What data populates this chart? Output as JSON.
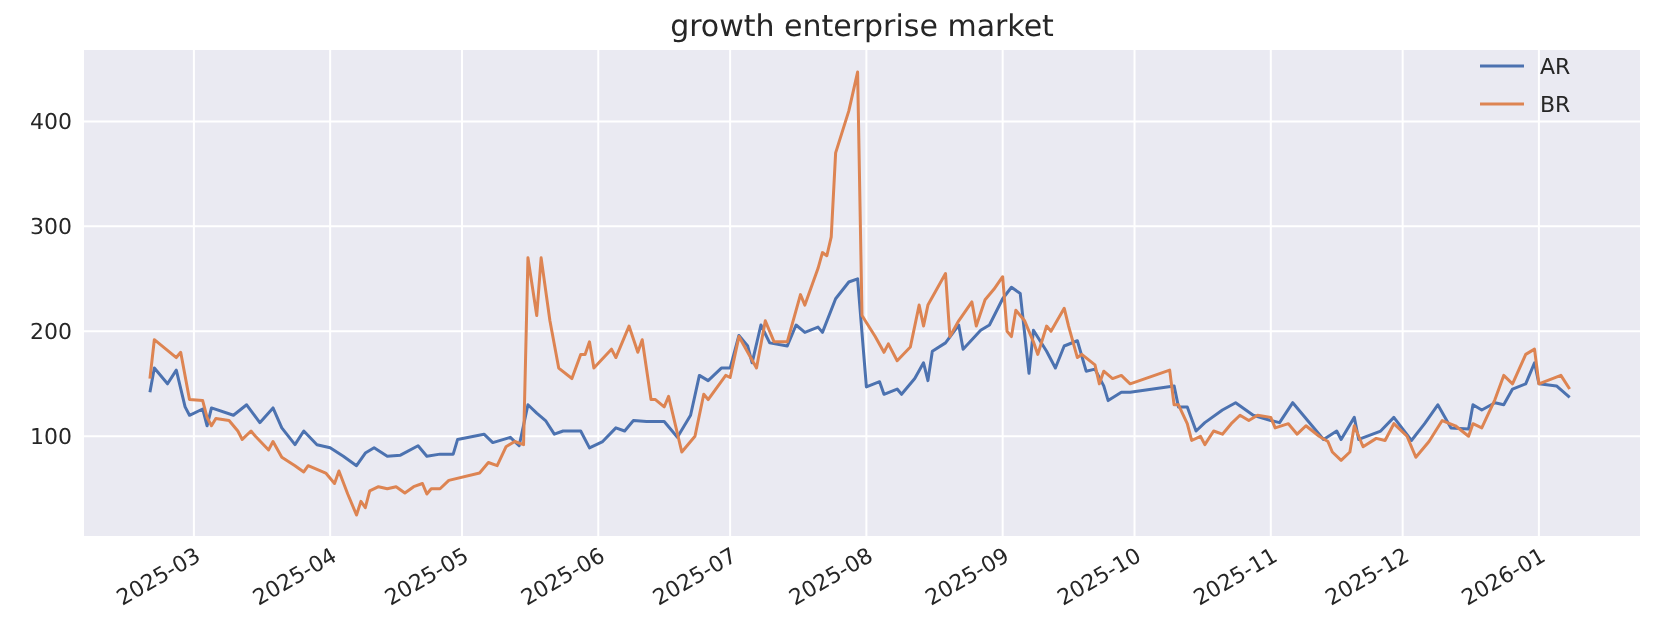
{
  "chart_data": {
    "type": "line",
    "title": "growth enterprise market",
    "xlim": [
      "2025-02-04",
      "2026-01-24"
    ],
    "xticks": [
      "2025-03",
      "2025-04",
      "2025-05",
      "2025-06",
      "2025-07",
      "2025-08",
      "2025-09",
      "2025-10",
      "2025-11",
      "2025-12",
      "2026-01"
    ],
    "ylim": [
      5,
      468
    ],
    "yticks": [
      100,
      200,
      300,
      400
    ],
    "grid": true,
    "legend": "top right",
    "line_style": "solid",
    "marker": "none",
    "series": [
      {
        "name": "AR",
        "color": "#4c72b0",
        "x": [
          "2025-02-19",
          "2025-02-20",
          "2025-02-23",
          "2025-02-25",
          "2025-02-27",
          "2025-02-28",
          "2025-03-03",
          "2025-03-04",
          "2025-03-05",
          "2025-03-10",
          "2025-03-13",
          "2025-03-16",
          "2025-03-19",
          "2025-03-21",
          "2025-03-24",
          "2025-03-26",
          "2025-03-29",
          "2025-04-01",
          "2025-04-04",
          "2025-04-07",
          "2025-04-09",
          "2025-04-11",
          "2025-04-14",
          "2025-04-17",
          "2025-04-21",
          "2025-04-23",
          "2025-04-26",
          "2025-04-29",
          "2025-04-30",
          "2025-05-06",
          "2025-05-08",
          "2025-05-12",
          "2025-05-14",
          "2025-05-16",
          "2025-05-18",
          "2025-05-20",
          "2025-05-22",
          "2025-05-24",
          "2025-05-28",
          "2025-05-30",
          "2025-06-02",
          "2025-06-05",
          "2025-06-07",
          "2025-06-09",
          "2025-06-12",
          "2025-06-16",
          "2025-06-19",
          "2025-06-22",
          "2025-06-24",
          "2025-06-26",
          "2025-06-29",
          "2025-07-01",
          "2025-07-03",
          "2025-07-05",
          "2025-07-06",
          "2025-07-08",
          "2025-07-10",
          "2025-07-14",
          "2025-07-16",
          "2025-07-18",
          "2025-07-21",
          "2025-07-22",
          "2025-07-25",
          "2025-07-28",
          "2025-07-30",
          "2025-08-01",
          "2025-08-04",
          "2025-08-05",
          "2025-08-08",
          "2025-08-09",
          "2025-08-12",
          "2025-08-14",
          "2025-08-15",
          "2025-08-16",
          "2025-08-19",
          "2025-08-22",
          "2025-08-23",
          "2025-08-27",
          "2025-08-29",
          "2025-09-01",
          "2025-09-03",
          "2025-09-05",
          "2025-09-07",
          "2025-09-08",
          "2025-09-11",
          "2025-09-13",
          "2025-09-15",
          "2025-09-18",
          "2025-09-20",
          "2025-09-22",
          "2025-09-24",
          "2025-09-25",
          "2025-09-28",
          "2025-09-30",
          "2025-10-10",
          "2025-10-11",
          "2025-10-13",
          "2025-10-15",
          "2025-10-17",
          "2025-10-21",
          "2025-10-24",
          "2025-10-28",
          "2025-11-01",
          "2025-11-03",
          "2025-11-06",
          "2025-11-10",
          "2025-11-13",
          "2025-11-16",
          "2025-11-17",
          "2025-11-20",
          "2025-11-21",
          "2025-11-26",
          "2025-11-29",
          "2025-12-03",
          "2025-12-06",
          "2025-12-09",
          "2025-12-12",
          "2025-12-16",
          "2025-12-17",
          "2025-12-19",
          "2025-12-22",
          "2025-12-24",
          "2025-12-26",
          "2025-12-29",
          "2025-12-31",
          "2026-01-01",
          "2026-01-05",
          "2026-01-08"
        ],
        "values": [
          142,
          165,
          150,
          163,
          128,
          120,
          126,
          110,
          127,
          120,
          130,
          113,
          127,
          108,
          92,
          105,
          92,
          89,
          81,
          72,
          84,
          89,
          81,
          82,
          91,
          81,
          83,
          83,
          97,
          102,
          94,
          99,
          91,
          130,
          122,
          115,
          102,
          105,
          105,
          89,
          95,
          108,
          105,
          115,
          114,
          114,
          99,
          120,
          158,
          153,
          165,
          165,
          196,
          186,
          170,
          206,
          189,
          186,
          206,
          199,
          204,
          199,
          231,
          247,
          250,
          147,
          152,
          140,
          145,
          140,
          155,
          170,
          153,
          181,
          189,
          206,
          183,
          201,
          206,
          231,
          242,
          236,
          160,
          201,
          181,
          165,
          186,
          191,
          162,
          164,
          148,
          134,
          142,
          142,
          148,
          128,
          128,
          105,
          113,
          125,
          132,
          120,
          115,
          113,
          132,
          112,
          97,
          105,
          97,
          118,
          97,
          105,
          118,
          96,
          112,
          130,
          108,
          107,
          130,
          125,
          132,
          130,
          145,
          150,
          170,
          150,
          148,
          137
        ]
      },
      {
        "name": "BR",
        "color": "#dd8452",
        "x": [
          "2025-02-19",
          "2025-02-20",
          "2025-02-25",
          "2025-02-26",
          "2025-02-28",
          "2025-03-03",
          "2025-03-04",
          "2025-03-05",
          "2025-03-06",
          "2025-03-09",
          "2025-03-11",
          "2025-03-12",
          "2025-03-14",
          "2025-03-15",
          "2025-03-18",
          "2025-03-19",
          "2025-03-21",
          "2025-03-24",
          "2025-03-26",
          "2025-03-27",
          "2025-03-31",
          "2025-04-02",
          "2025-04-03",
          "2025-04-05",
          "2025-04-07",
          "2025-04-08",
          "2025-04-09",
          "2025-04-10",
          "2025-04-12",
          "2025-04-14",
          "2025-04-16",
          "2025-04-18",
          "2025-04-20",
          "2025-04-22",
          "2025-04-23",
          "2025-04-24",
          "2025-04-26",
          "2025-04-28",
          "2025-05-05",
          "2025-05-07",
          "2025-05-09",
          "2025-05-11",
          "2025-05-13",
          "2025-05-15",
          "2025-05-16",
          "2025-05-18",
          "2025-05-19",
          "2025-05-21",
          "2025-05-23",
          "2025-05-26",
          "2025-05-28",
          "2025-05-29",
          "2025-05-30",
          "2025-05-31",
          "2025-06-04",
          "2025-06-05",
          "2025-06-06",
          "2025-06-08",
          "2025-06-10",
          "2025-06-11",
          "2025-06-13",
          "2025-06-14",
          "2025-06-16",
          "2025-06-17",
          "2025-06-20",
          "2025-06-23",
          "2025-06-25",
          "2025-06-26",
          "2025-06-30",
          "2025-07-01",
          "2025-07-03",
          "2025-07-05",
          "2025-07-07",
          "2025-07-09",
          "2025-07-11",
          "2025-07-14",
          "2025-07-17",
          "2025-07-18",
          "2025-07-21",
          "2025-07-22",
          "2025-07-23",
          "2025-07-24",
          "2025-07-25",
          "2025-07-28",
          "2025-07-30",
          "2025-07-31",
          "2025-08-03",
          "2025-08-05",
          "2025-08-06",
          "2025-08-08",
          "2025-08-11",
          "2025-08-13",
          "2025-08-14",
          "2025-08-15",
          "2025-08-19",
          "2025-08-20",
          "2025-08-22",
          "2025-08-25",
          "2025-08-26",
          "2025-08-28",
          "2025-08-30",
          "2025-09-01",
          "2025-09-02",
          "2025-09-03",
          "2025-09-04",
          "2025-09-06",
          "2025-09-08",
          "2025-09-09",
          "2025-09-11",
          "2025-09-12",
          "2025-09-15",
          "2025-09-16",
          "2025-09-18",
          "2025-09-19",
          "2025-09-22",
          "2025-09-23",
          "2025-09-24",
          "2025-09-26",
          "2025-09-28",
          "2025-09-30",
          "2025-10-09",
          "2025-10-10",
          "2025-10-11",
          "2025-10-13",
          "2025-10-14",
          "2025-10-16",
          "2025-10-17",
          "2025-10-19",
          "2025-10-21",
          "2025-10-23",
          "2025-10-25",
          "2025-10-27",
          "2025-10-29",
          "2025-11-01",
          "2025-11-02",
          "2025-11-05",
          "2025-11-07",
          "2025-11-09",
          "2025-11-12",
          "2025-11-14",
          "2025-11-15",
          "2025-11-17",
          "2025-11-19",
          "2025-11-20",
          "2025-11-22",
          "2025-11-25",
          "2025-11-27",
          "2025-11-29",
          "2025-12-02",
          "2025-12-04",
          "2025-12-07",
          "2025-12-10",
          "2025-12-13",
          "2025-12-16",
          "2025-12-17",
          "2025-12-19",
          "2025-12-22",
          "2025-12-24",
          "2025-12-26",
          "2025-12-29",
          "2025-12-31",
          "2026-01-01",
          "2026-01-06",
          "2026-01-08"
        ],
        "values": [
          155,
          192,
          175,
          180,
          135,
          134,
          118,
          110,
          117,
          115,
          105,
          97,
          105,
          100,
          87,
          95,
          80,
          72,
          66,
          72,
          65,
          55,
          67,
          45,
          25,
          38,
          32,
          48,
          52,
          50,
          52,
          46,
          52,
          55,
          45,
          50,
          50,
          58,
          65,
          75,
          72,
          90,
          95,
          92,
          270,
          215,
          270,
          210,
          165,
          155,
          178,
          178,
          190,
          165,
          183,
          175,
          185,
          205,
          180,
          192,
          135,
          135,
          128,
          138,
          85,
          100,
          140,
          135,
          158,
          156,
          195,
          180,
          165,
          210,
          190,
          190,
          235,
          225,
          260,
          275,
          272,
          290,
          370,
          410,
          447,
          215,
          195,
          180,
          188,
          172,
          185,
          225,
          205,
          225,
          255,
          195,
          210,
          228,
          205,
          230,
          240,
          252,
          200,
          195,
          220,
          210,
          190,
          178,
          205,
          200,
          222,
          205,
          175,
          178,
          168,
          150,
          162,
          155,
          158,
          150,
          163,
          130,
          130,
          112,
          96,
          100,
          92,
          105,
          102,
          112,
          120,
          115,
          120,
          118,
          108,
          112,
          102,
          110,
          100,
          95,
          85,
          77,
          85,
          110,
          90,
          98,
          96,
          112,
          100,
          80,
          95,
          115,
          110,
          100,
          112,
          108,
          135,
          158,
          150,
          178,
          183,
          150,
          158,
          145
        ]
      }
    ]
  }
}
